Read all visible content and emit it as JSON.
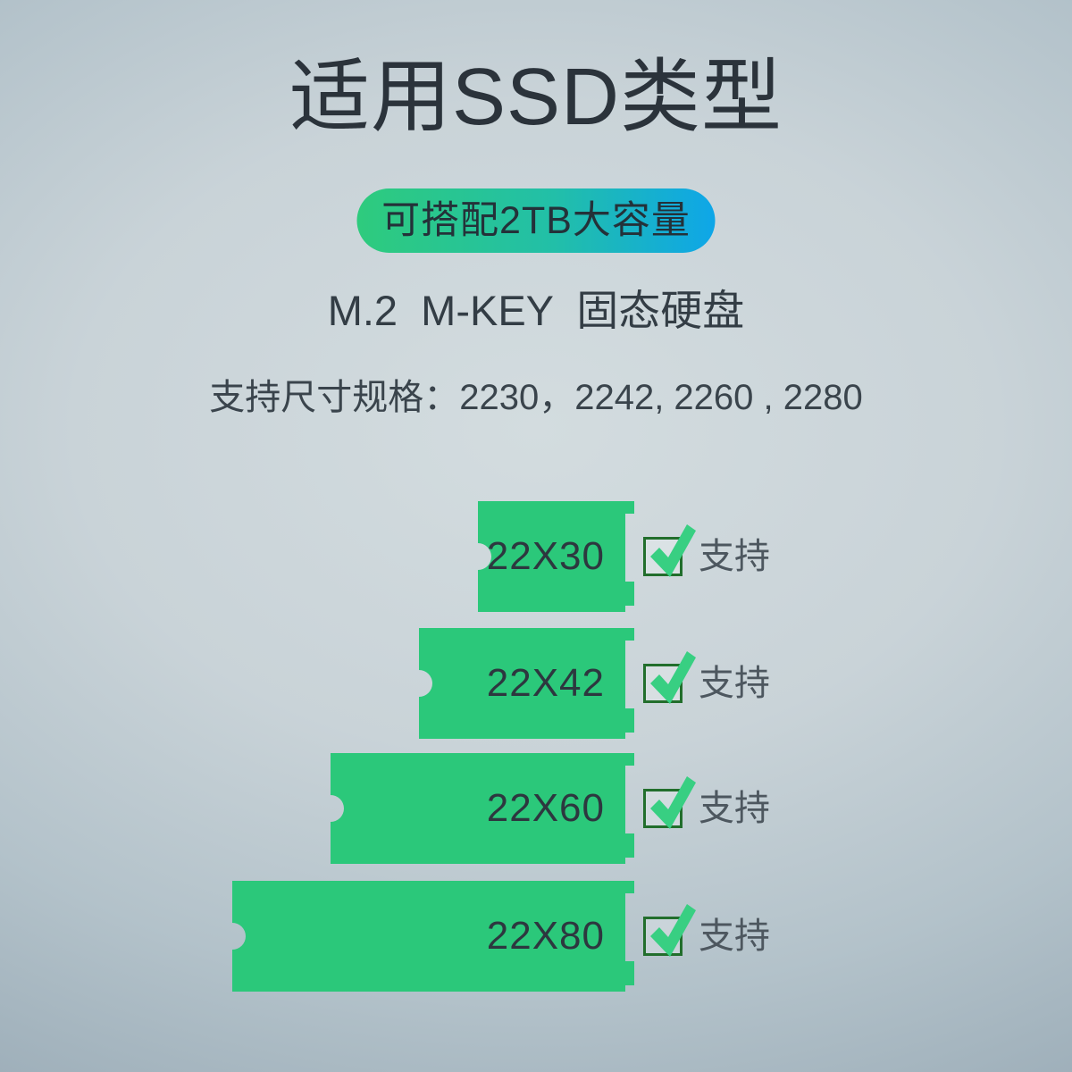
{
  "page": {
    "title": "适用SSD类型"
  },
  "badge": {
    "label": "可搭配2TB大容量"
  },
  "subtitle": "M.2  M-KEY  固态硬盘",
  "specs_line": "支持尺寸规格：2230，2242, 2260 , 2280",
  "colors": {
    "background_center": "#d3dcdf",
    "background_edge": "#94a5b1",
    "title_text": "#2b333b",
    "badge_gradient_from": "#2ecb7d",
    "badge_gradient_to": "#0ea6e8",
    "bar_green": "#2bc87a",
    "bar_label_text": "#2d373f",
    "checkbox_border": "#226e2c",
    "check_green": "#38cf82",
    "status_text": "#4d575f"
  },
  "icons": {
    "checkmark": "✓"
  },
  "chart_data": {
    "type": "bar",
    "orientation": "horizontal",
    "title": "适用SSD类型",
    "subtitle": "M.2 M-KEY 固态硬盘",
    "note": "支持尺寸规格：2230，2242, 2260 , 2280",
    "categories": [
      "22X30",
      "22X42",
      "22X60",
      "22X80"
    ],
    "values": [
      30,
      42,
      60,
      80
    ],
    "unit": "mm (length of 22mm-wide M.2 card)",
    "status_labels": [
      "支持",
      "支持",
      "支持",
      "支持"
    ],
    "checked": [
      true,
      true,
      true,
      true
    ],
    "bars_right_aligned": true,
    "legend": "none",
    "grid": false
  }
}
